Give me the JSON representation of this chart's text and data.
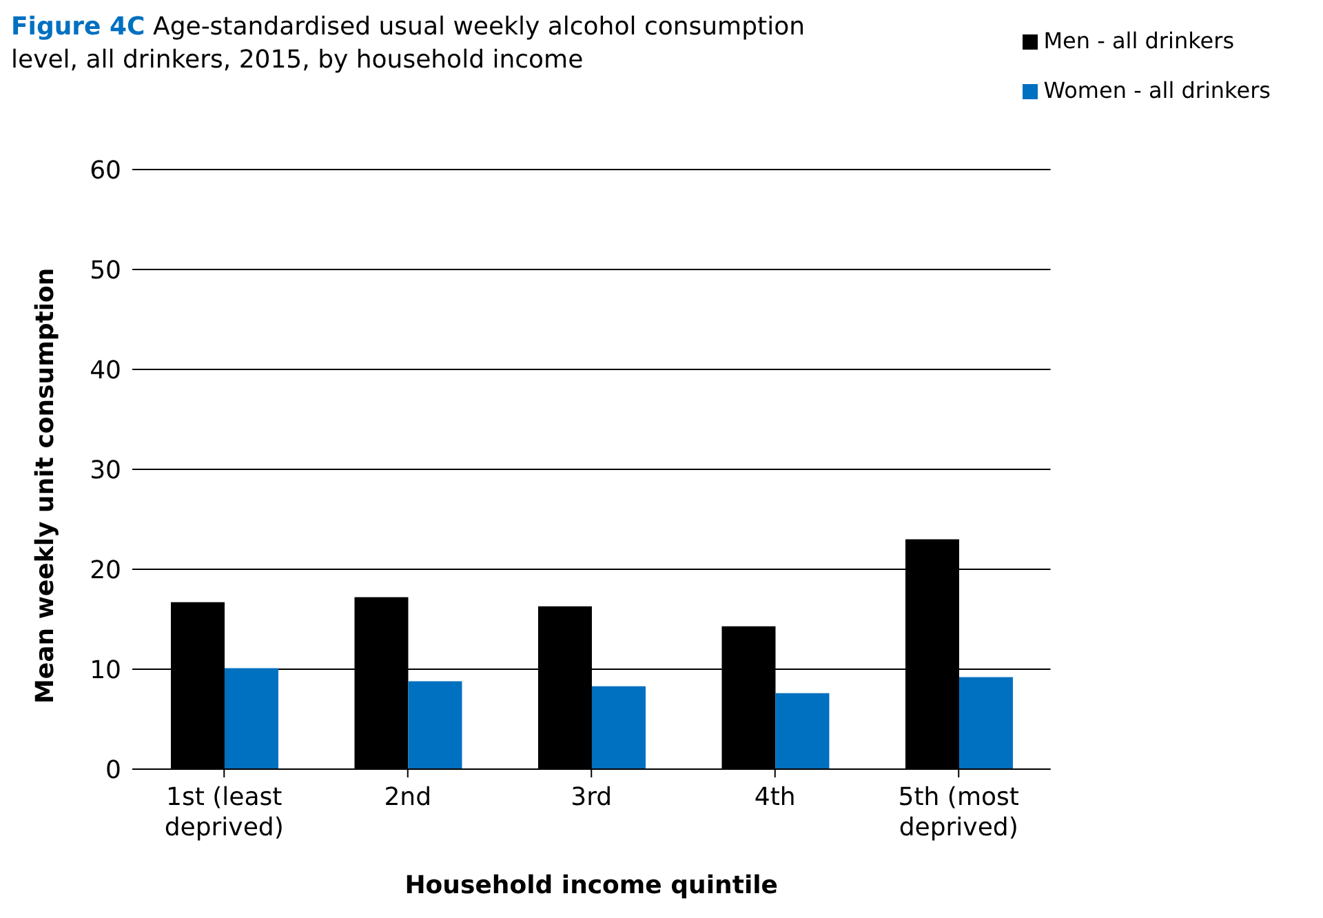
{
  "chart_data": {
    "type": "bar",
    "title": "Figure 4C Age-standardised usual weekly alcohol consumption level, all drinkers, 2015, by household income",
    "xlabel": "Household income quintile",
    "ylabel": "Mean weekly unit consumption",
    "categories": [
      "1st (least deprived)",
      "2nd",
      "3rd",
      "4th",
      "5th (most deprived)"
    ],
    "series": [
      {
        "name": "Men - all drinkers",
        "color": "#000000",
        "values": [
          16.7,
          17.2,
          16.3,
          14.3,
          23.0
        ]
      },
      {
        "name": "Women - all drinkers",
        "color": "#0070c0",
        "values": [
          10.1,
          8.8,
          8.3,
          7.6,
          9.2
        ]
      }
    ],
    "ylim": [
      0,
      60
    ],
    "yticks": [
      0,
      10,
      20,
      30,
      40,
      50,
      60
    ],
    "grid": "y",
    "legend": "top right"
  }
}
